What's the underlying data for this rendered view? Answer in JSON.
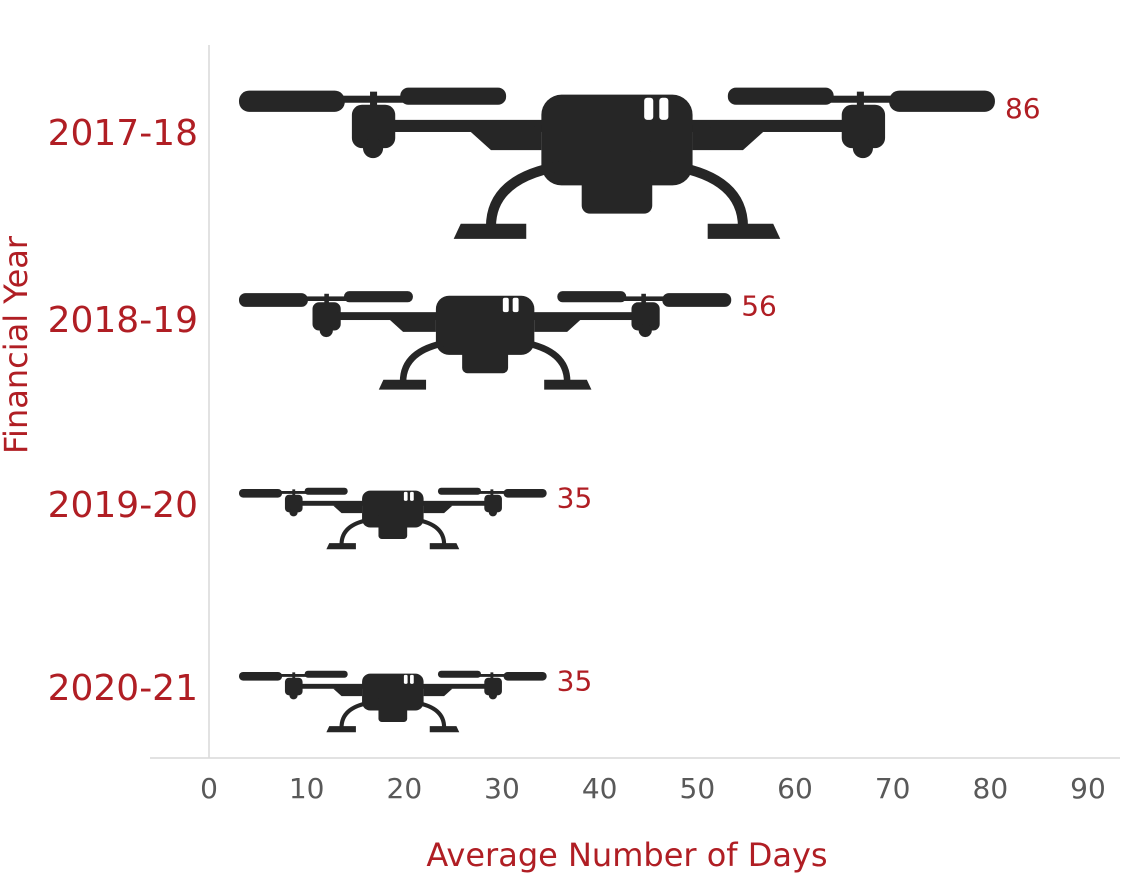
{
  "chart_data": {
    "type": "pictograph-bar",
    "orientation": "horizontal",
    "x_label": "Average Number of Days",
    "y_label": "Financial Year",
    "categories": [
      "2017-18",
      "2018-19",
      "2019-20",
      "2020-21"
    ],
    "values": [
      86,
      56,
      35,
      35
    ],
    "color": "#262626",
    "label_color": "#b01e24",
    "tick_color": "#595959",
    "xlim": [
      0,
      90
    ],
    "xticks": [
      0,
      10,
      20,
      30,
      40,
      50,
      60,
      70,
      80,
      90
    ]
  }
}
